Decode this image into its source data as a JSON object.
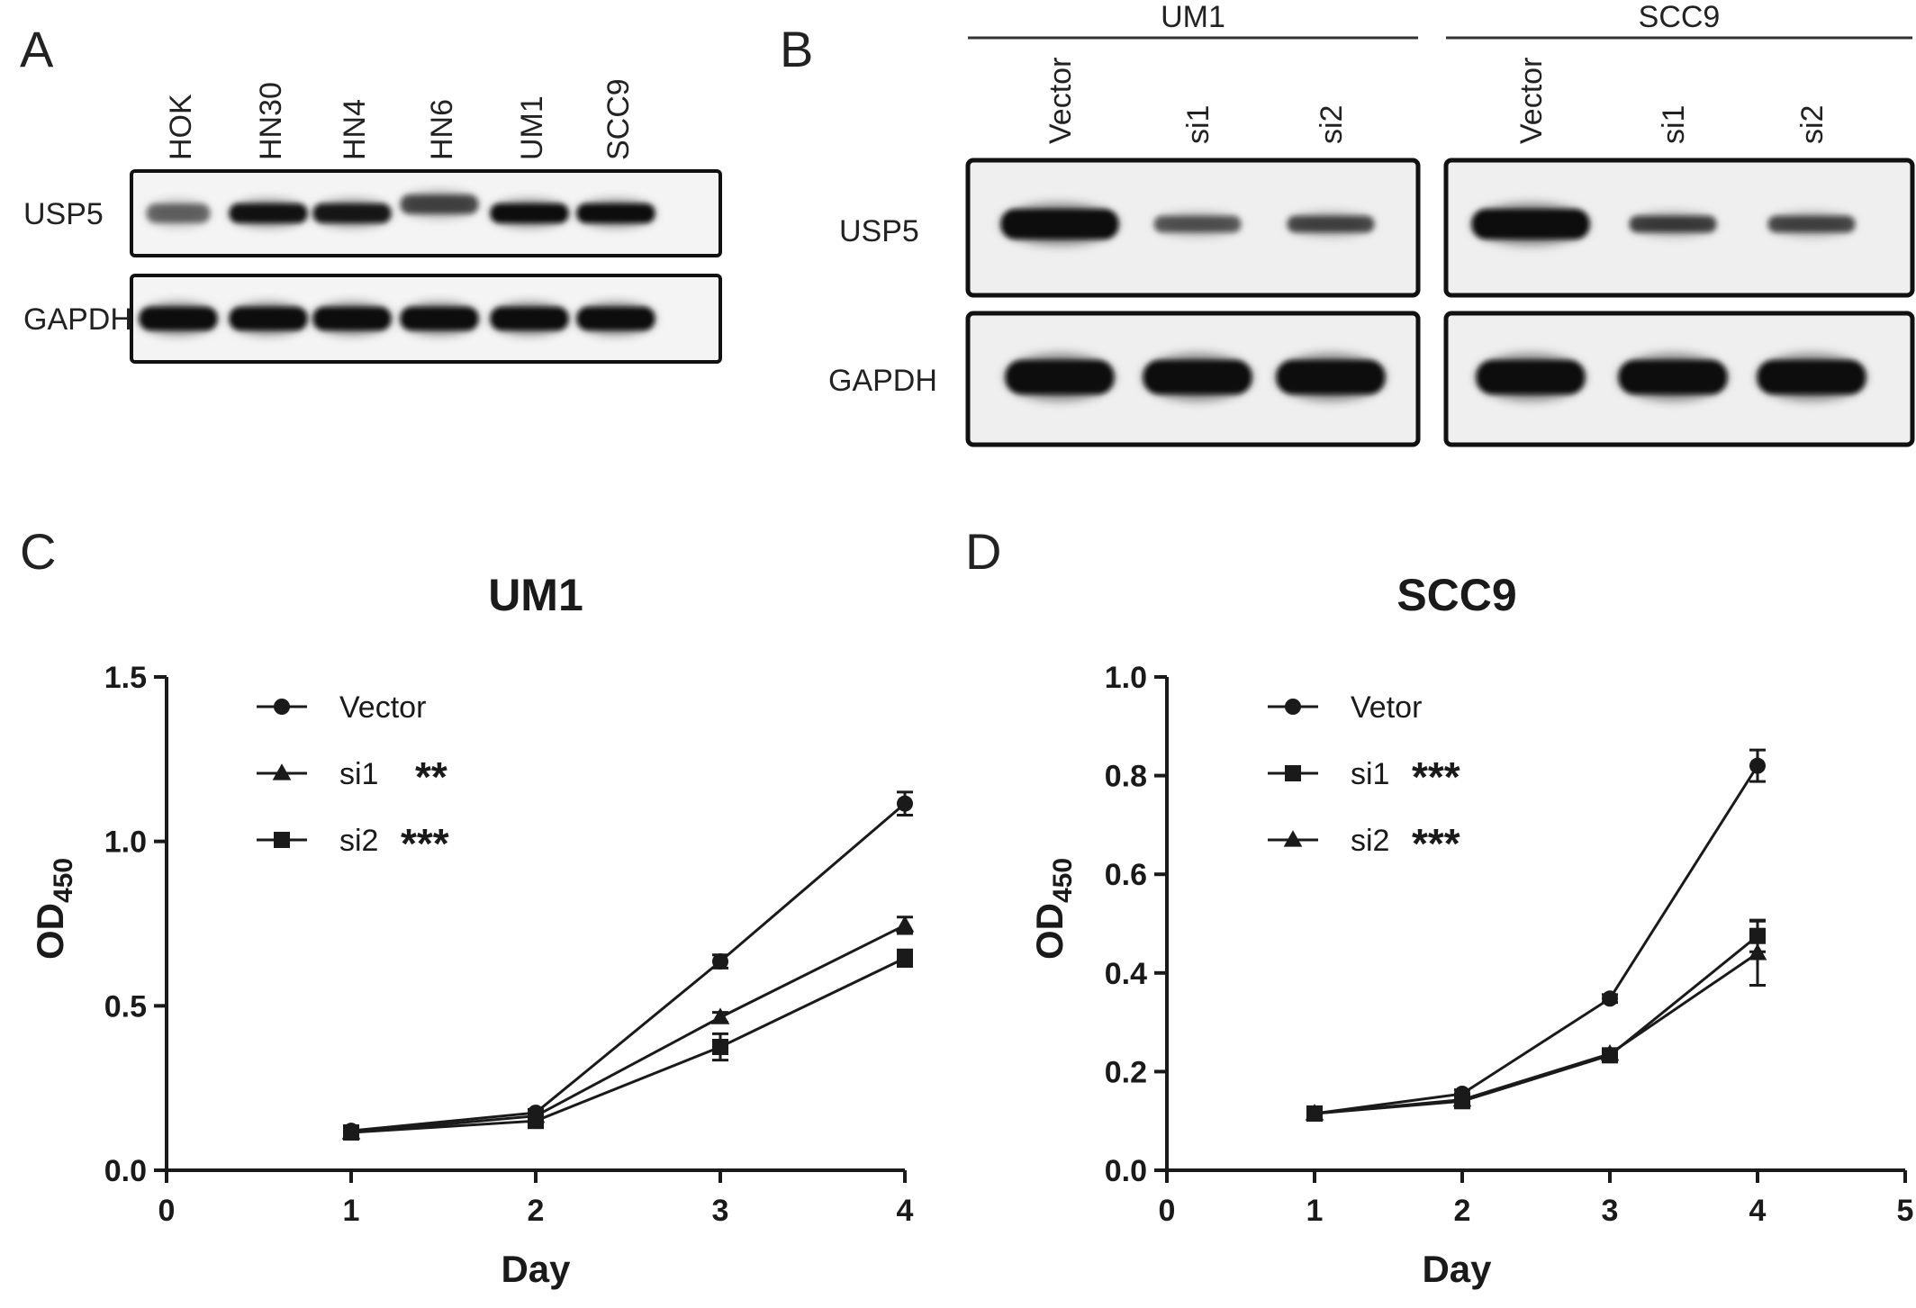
{
  "panels": {
    "A": {
      "letter": "A",
      "lanes": [
        "HOK",
        "HN30",
        "HN4",
        "HN6",
        "UM1",
        "SCC9"
      ],
      "rows": [
        "USP5",
        "GAPDH"
      ],
      "bands": {
        "USP5": [
          0.35,
          0.95,
          0.9,
          0.55,
          1.0,
          1.0
        ],
        "GAPDH": [
          1.0,
          1.0,
          1.0,
          1.0,
          1.0,
          1.0
        ]
      }
    },
    "B": {
      "letter": "B",
      "groups": [
        {
          "name": "UM1",
          "lanes": [
            "Vector",
            "si1",
            "si2"
          ],
          "bands": {
            "USP5": [
              1.0,
              0.45,
              0.55
            ],
            "GAPDH": [
              1.0,
              1.0,
              1.0
            ]
          }
        },
        {
          "name": "SCC9",
          "lanes": [
            "Vector",
            "si1",
            "si2"
          ],
          "bands": {
            "USP5": [
              1.0,
              0.6,
              0.55
            ],
            "GAPDH": [
              1.0,
              1.0,
              1.0
            ]
          }
        }
      ],
      "rows": [
        "USP5",
        "GAPDH"
      ]
    },
    "C": {
      "letter": "C"
    },
    "D": {
      "letter": "D"
    }
  },
  "chart_data": [
    {
      "type": "line",
      "title": "UM1",
      "xlabel": "Day",
      "ylabel_main": "OD",
      "ylabel_sub": "450",
      "xlim": [
        0,
        4
      ],
      "ylim": [
        0,
        1.5
      ],
      "xticks": [
        "0",
        "1",
        "2",
        "3",
        "4"
      ],
      "yticks": [
        "0.0",
        "0.5",
        "1.0",
        "1.5"
      ],
      "x": [
        1,
        2,
        3,
        4
      ],
      "series": [
        {
          "name": "Vector",
          "sig": "",
          "marker": "circle",
          "values": [
            0.12,
            0.175,
            0.635,
            1.115
          ],
          "err": [
            0.01,
            0.01,
            0.02,
            0.035
          ]
        },
        {
          "name": "si1",
          "sig": "**",
          "marker": "triangle",
          "values": [
            0.115,
            0.165,
            0.465,
            0.745
          ],
          "err": [
            0.01,
            0.01,
            0.015,
            0.025
          ]
        },
        {
          "name": "si2",
          "sig": "***",
          "marker": "square",
          "values": [
            0.115,
            0.15,
            0.375,
            0.645
          ],
          "err": [
            0.01,
            0.01,
            0.04,
            0.025
          ]
        }
      ],
      "legend": "top-left"
    },
    {
      "type": "line",
      "title": "SCC9",
      "xlabel": "Day",
      "ylabel_main": "OD",
      "ylabel_sub": "450",
      "xlim": [
        0,
        5
      ],
      "ylim": [
        0,
        1.0
      ],
      "xticks": [
        "0",
        "1",
        "2",
        "3",
        "4",
        "5"
      ],
      "yticks": [
        "0.0",
        "0.2",
        "0.4",
        "0.6",
        "0.8",
        "1.0"
      ],
      "x": [
        1,
        2,
        3,
        4
      ],
      "series": [
        {
          "name": "Vetor",
          "sig": "",
          "marker": "circle",
          "values": [
            0.115,
            0.155,
            0.348,
            0.82
          ],
          "err": [
            0.005,
            0.008,
            0.008,
            0.032
          ]
        },
        {
          "name": "si1",
          "sig": "***",
          "marker": "square",
          "values": [
            0.115,
            0.14,
            0.233,
            0.475
          ],
          "err": [
            0.005,
            0.008,
            0.008,
            0.032
          ]
        },
        {
          "name": "si2",
          "sig": "***",
          "marker": "triangle",
          "values": [
            0.115,
            0.143,
            0.236,
            0.44
          ],
          "err": [
            0.005,
            0.008,
            0.008,
            0.065
          ]
        }
      ],
      "legend": "top-left"
    }
  ]
}
